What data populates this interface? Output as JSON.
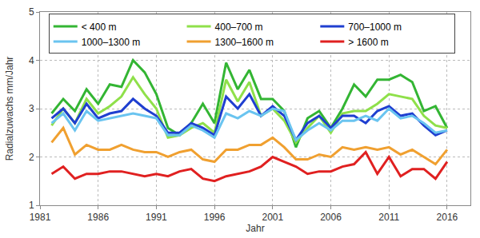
{
  "chart_data": {
    "type": "line",
    "x_label": "Jahr",
    "y_label": "Radialzuwachs mm/Jahr",
    "x": [
      1982,
      1983,
      1984,
      1985,
      1986,
      1987,
      1988,
      1989,
      1990,
      1991,
      1992,
      1993,
      1994,
      1995,
      1996,
      1997,
      1998,
      1999,
      2000,
      2001,
      2002,
      2003,
      2004,
      2005,
      2006,
      2007,
      2008,
      2009,
      2010,
      2011,
      2012,
      2013,
      2014,
      2015,
      2016
    ],
    "series": [
      {
        "name": "< 400 m",
        "color": "#33b533",
        "values": [
          2.9,
          3.2,
          2.95,
          3.4,
          3.1,
          3.5,
          3.45,
          4.0,
          3.75,
          3.3,
          2.6,
          2.45,
          2.7,
          3.1,
          2.7,
          3.95,
          3.4,
          3.8,
          3.2,
          3.2,
          2.95,
          2.2,
          2.8,
          2.95,
          2.6,
          3.0,
          3.5,
          3.25,
          3.6,
          3.6,
          3.7,
          3.55,
          2.95,
          3.05,
          2.6
        ]
      },
      {
        "name": "400–700 m",
        "color": "#8fe04a",
        "values": [
          2.65,
          3.0,
          2.7,
          3.2,
          2.9,
          3.05,
          3.25,
          3.65,
          3.3,
          3.0,
          2.4,
          2.45,
          2.6,
          2.7,
          2.5,
          3.6,
          3.15,
          3.55,
          2.85,
          3.0,
          2.75,
          2.3,
          2.6,
          2.85,
          2.5,
          2.9,
          2.95,
          2.95,
          3.1,
          3.3,
          3.25,
          3.2,
          2.85,
          2.65,
          2.6
        ]
      },
      {
        "name": "700–1000 m",
        "color": "#1f3fd0",
        "values": [
          2.8,
          3.0,
          2.7,
          3.1,
          2.8,
          2.9,
          2.95,
          3.2,
          3.0,
          2.85,
          2.5,
          2.5,
          2.7,
          2.6,
          2.45,
          3.25,
          3.0,
          3.3,
          2.85,
          3.05,
          2.85,
          2.35,
          2.7,
          2.85,
          2.6,
          2.85,
          2.85,
          2.7,
          2.95,
          3.05,
          2.85,
          2.9,
          2.65,
          2.45,
          2.55
        ]
      },
      {
        "name": "1000–1300 m",
        "color": "#6ac4f0",
        "values": [
          2.7,
          2.9,
          2.55,
          2.95,
          2.75,
          2.8,
          2.85,
          2.9,
          2.85,
          2.8,
          2.45,
          2.45,
          2.65,
          2.55,
          2.4,
          2.9,
          2.8,
          2.95,
          2.85,
          3.0,
          2.95,
          2.35,
          2.55,
          2.7,
          2.55,
          2.75,
          2.75,
          2.85,
          2.75,
          3.0,
          2.8,
          2.85,
          2.7,
          2.5,
          2.55
        ]
      },
      {
        "name": "1300–1600 m",
        "color": "#f0a030",
        "values": [
          2.3,
          2.6,
          2.05,
          2.25,
          2.15,
          2.15,
          2.25,
          2.15,
          2.1,
          2.1,
          2.0,
          2.1,
          2.15,
          1.95,
          1.9,
          2.15,
          2.15,
          2.25,
          2.25,
          2.4,
          2.2,
          1.95,
          1.95,
          2.05,
          2.0,
          2.2,
          2.15,
          2.2,
          2.15,
          2.2,
          2.05,
          2.15,
          2.0,
          1.85,
          2.15
        ]
      },
      {
        "name": "> 1600 m",
        "color": "#e02020",
        "values": [
          1.65,
          1.8,
          1.55,
          1.65,
          1.65,
          1.7,
          1.7,
          1.65,
          1.6,
          1.65,
          1.6,
          1.7,
          1.75,
          1.55,
          1.5,
          1.6,
          1.65,
          1.7,
          1.8,
          2.0,
          1.9,
          1.8,
          1.65,
          1.7,
          1.7,
          1.8,
          1.85,
          2.1,
          1.65,
          2.0,
          1.6,
          1.75,
          1.75,
          1.55,
          1.9
        ]
      }
    ],
    "xlim": [
      1981,
      2018
    ],
    "xticks": [
      1981,
      1986,
      1991,
      1996,
      2001,
      2006,
      2011,
      2016
    ],
    "ylim": [
      1,
      5
    ],
    "yticks": [
      1,
      2,
      3,
      4,
      5
    ],
    "grid": true,
    "legend": "top"
  }
}
